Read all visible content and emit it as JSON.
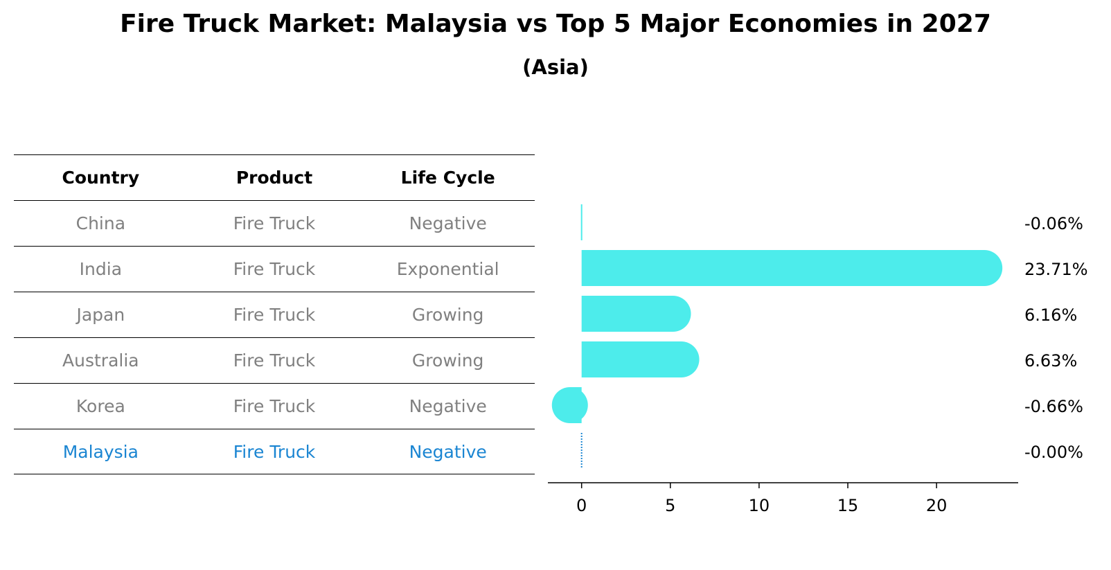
{
  "title": "Fire Truck Market: Malaysia vs Top 5 Major Economies in 2027",
  "subtitle": "(Asia)",
  "table": {
    "headers": [
      "Country",
      "Product",
      "Life Cycle"
    ],
    "rows": [
      [
        "China",
        "Fire Truck",
        "Negative"
      ],
      [
        "India",
        "Fire Truck",
        "Exponential"
      ],
      [
        "Japan",
        "Fire Truck",
        "Growing"
      ],
      [
        "Australia",
        "Fire Truck",
        "Growing"
      ],
      [
        "Korea",
        "Fire Truck",
        "Negative"
      ],
      [
        "Malaysia",
        "Fire Truck",
        "Negative"
      ]
    ],
    "highlight_row": 5,
    "highlight_color": "#1a85d2",
    "row_text_color": "#808080"
  },
  "chart_data": {
    "type": "bar",
    "orientation": "horizontal",
    "categories": [
      "China",
      "India",
      "Japan",
      "Australia",
      "Korea",
      "Malaysia"
    ],
    "values": [
      -0.06,
      23.71,
      6.16,
      6.63,
      -0.66,
      -0.0
    ],
    "value_labels": [
      "-0.06%",
      "23.71%",
      "6.16%",
      "6.63%",
      "-0.66%",
      "-0.00%"
    ],
    "xlim": [
      -1.9,
      24.6
    ],
    "xticks": [
      0,
      5,
      10,
      15,
      20
    ],
    "xtick_labels": [
      "0",
      "5",
      "10",
      "15",
      "20"
    ],
    "bar_color": "#4deceb",
    "highlight_line_color": "#1a85d2",
    "grid": false
  }
}
